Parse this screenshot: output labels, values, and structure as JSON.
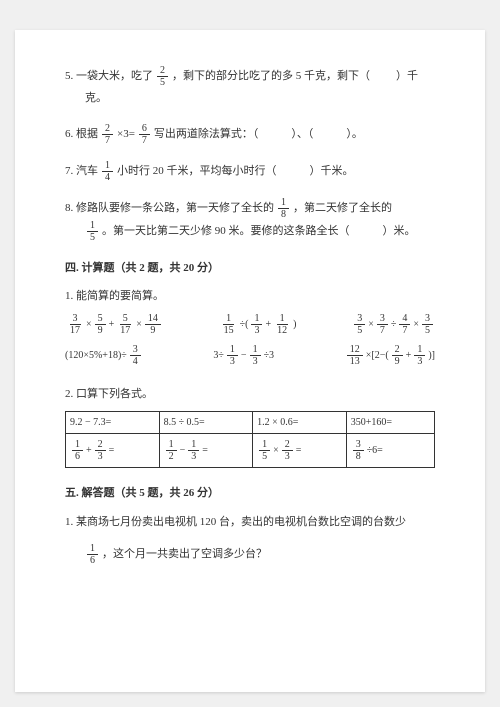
{
  "q5": {
    "prefix": "5. 一袋大米，吃了",
    "frac": {
      "n": "2",
      "d": "5"
    },
    "mid": "，剩下的部分比吃了的多 5 千克，剩下（",
    "blank": "　　",
    "suffix": "）千",
    "line2": "克。"
  },
  "q6": {
    "prefix": "6. 根据",
    "frac1": {
      "n": "2",
      "d": "7"
    },
    "times": " ×3=",
    "frac2": {
      "n": "6",
      "d": "7"
    },
    "text": " 写出两道除法算式：（　　　）、（　　　）。"
  },
  "q7": {
    "prefix": "7. 汽车",
    "frac": {
      "n": "1",
      "d": "4"
    },
    "text": " 小时行 20 千米，平均每小时行（　　　）千米。"
  },
  "q8": {
    "line1_prefix": "8. 修路队要修一条公路，第一天修了全长的",
    "frac1": {
      "n": "1",
      "d": "8"
    },
    "line1_suffix": "，第二天修了全长的",
    "frac2": {
      "n": "1",
      "d": "5"
    },
    "line2": "。第一天比第二天少修 90 米。要修的这条路全长（　　　）米。"
  },
  "section4": {
    "title": "四. 计算题（共 2 题，共 20 分）",
    "sub1": "1. 能简算的要简算。",
    "sub2": "2. 口算下列各式。"
  },
  "exprs": {
    "e1": {
      "parts": [
        "3/17",
        "×",
        "5/9",
        "+",
        "5/17",
        "×",
        "14/9"
      ]
    },
    "e2": {
      "parts": [
        "1/15",
        "÷(",
        "1/3",
        "+",
        "1/12",
        ")"
      ]
    },
    "e3": {
      "parts": [
        "3/5",
        "×",
        "3/7",
        "÷",
        "4/7",
        "×",
        "3/5"
      ]
    },
    "e4": {
      "parts": [
        "(120×5%+18)÷",
        "3/4"
      ]
    },
    "e5": {
      "parts": [
        "3÷",
        "1/3",
        "−",
        "1/3",
        "÷3"
      ]
    },
    "e6": {
      "parts": [
        "12/13",
        "×[2−(",
        "2/9",
        "+",
        "1/3",
        ")]"
      ]
    }
  },
  "table": {
    "r1": [
      "9.2 − 7.3=",
      "8.5 ÷ 0.5=",
      "1.2 × 0.6=",
      "350+160="
    ],
    "r2": {
      "c1": {
        "f1": {
          "n": "1",
          "d": "6"
        },
        "op": "+",
        "f2": {
          "n": "2",
          "d": "3"
        },
        "eq": "="
      },
      "c2": {
        "f1": {
          "n": "1",
          "d": "2"
        },
        "op": "−",
        "f2": {
          "n": "1",
          "d": "3"
        },
        "eq": "="
      },
      "c3": {
        "f1": {
          "n": "1",
          "d": "5"
        },
        "op": "×",
        "f2": {
          "n": "2",
          "d": "3"
        },
        "eq": "="
      },
      "c4": {
        "f1": {
          "n": "3",
          "d": "8"
        },
        "op": "÷6="
      }
    }
  },
  "section5": {
    "title": "五. 解答题（共 5 题，共 26 分）",
    "q1_line1": "1. 某商场七月份卖出电视机 120 台，卖出的电视机台数比空调的台数少",
    "q1_frac": {
      "n": "1",
      "d": "6"
    },
    "q1_line2": "，这个月一共卖出了空调多少台？"
  }
}
